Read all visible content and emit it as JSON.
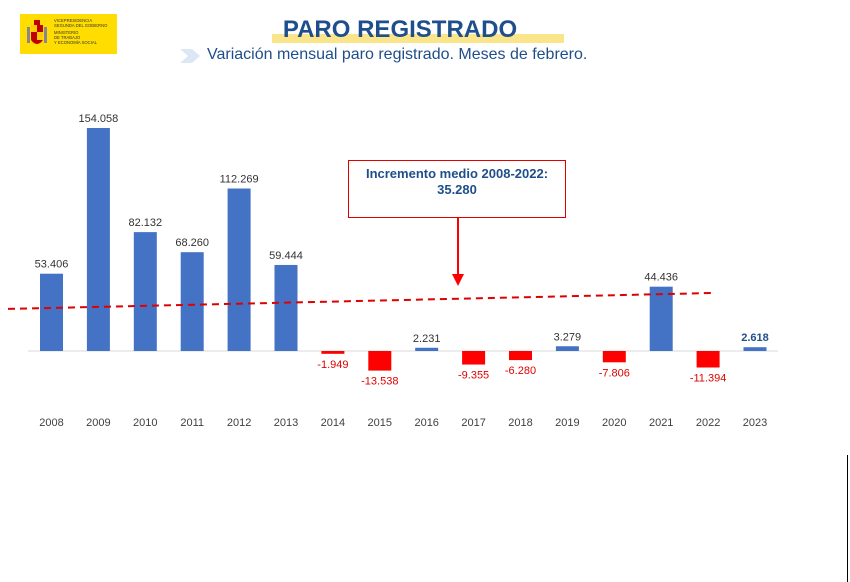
{
  "logo": {
    "lines": [
      "VICEPRESIDENCIA",
      "SEGUNDA DEL GOBIERNO",
      "MINISTERIO",
      "DE TRABAJO",
      "Y ECONOMÍA SOCIAL"
    ]
  },
  "header": {
    "title": "PARO REGISTRADO",
    "subtitle": "Variación mensual paro registrado. Meses de febrero."
  },
  "callout": {
    "line1": "Incremento medio 2008-2022:",
    "line2": "35.280"
  },
  "colors": {
    "positive": "#4472c4",
    "negative": "#ff0000",
    "label_positive": "#333333",
    "label_negative": "#e00000",
    "highlight_label": "#1f4e8c",
    "title": "#1f4e8c"
  },
  "chart_data": {
    "type": "bar",
    "title": "",
    "xlabel": "",
    "ylabel": "",
    "categories": [
      "2008",
      "2009",
      "2010",
      "2011",
      "2012",
      "2013",
      "2014",
      "2015",
      "2016",
      "2017",
      "2018",
      "2019",
      "2020",
      "2021",
      "2022",
      "2023"
    ],
    "values": [
      53406,
      154058,
      82132,
      68260,
      112269,
      59444,
      -1949,
      -13538,
      2231,
      -9355,
      -6280,
      3279,
      -7806,
      44436,
      -11394,
      2618
    ],
    "data_labels": [
      "53.406",
      "154.058",
      "82.132",
      "68.260",
      "112.269",
      "59.444",
      "-1.949",
      "-13.538",
      "2.231",
      "-9.355",
      "-6.280",
      "3.279",
      "-7.806",
      "44.436",
      "-11.394",
      "2.618"
    ],
    "ylim": [
      -30000,
      160000
    ],
    "reference_line": {
      "value": 35280,
      "style": "dashed",
      "color": "#e00000"
    },
    "grid": false,
    "legend": "none"
  }
}
